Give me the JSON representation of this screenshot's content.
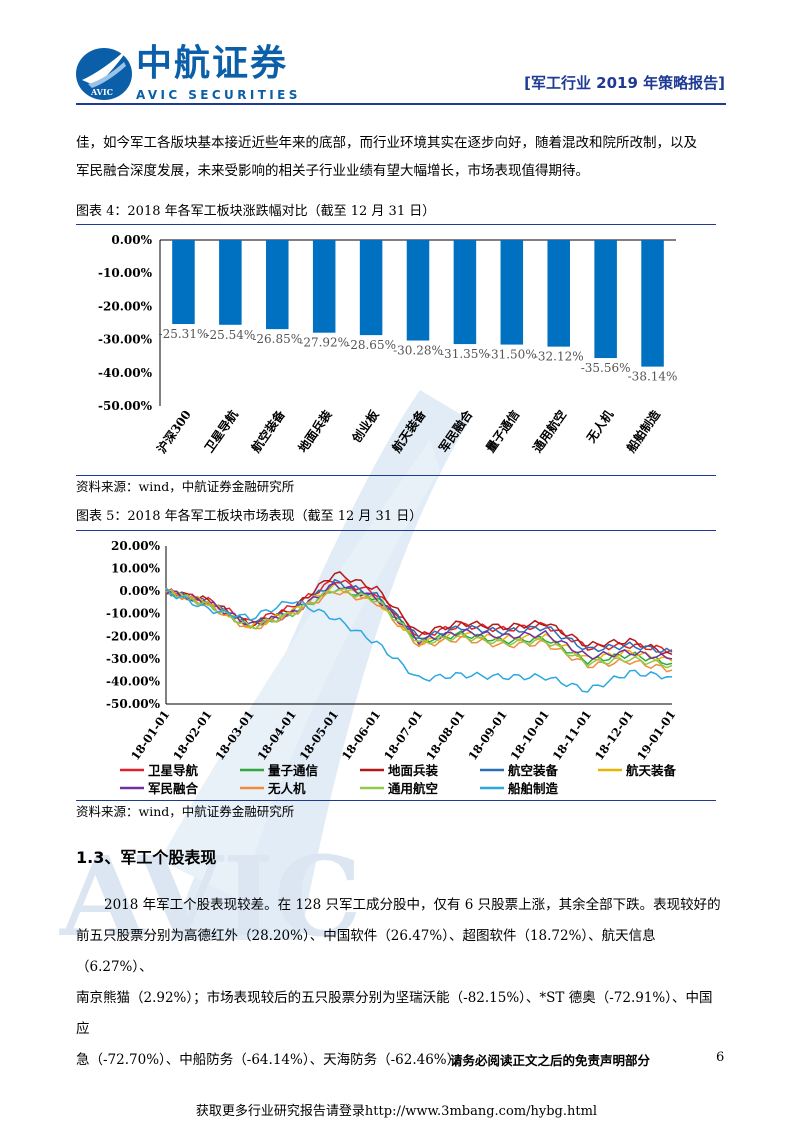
{
  "header": {
    "brand_cn": "中航证券",
    "brand_en": "AVIC SECURITIES",
    "logo_text": "AVIC",
    "report_title": "[军工行业 2019 年策略报告]"
  },
  "intro_lines": [
    "佳，如今军工各版块基本接近近些年来的底部，而行业环境其实在逐步向好，随着混改和院所改制，以及",
    "军民融合深度发展，未来受影响的相关子行业业绩有望大幅增长，市场表现值得期待。"
  ],
  "figure4": {
    "title": "图表 4：2018 年各军工板块涨跌幅对比（截至 12 月 31 日）",
    "source": "资料来源：wind，中航证券金融研究所"
  },
  "figure5": {
    "title": "图表 5：2018 年各军工板块市场表现（截至 12 月 31 日）",
    "source": "资料来源：wind，中航证券金融研究所"
  },
  "chart_data": [
    {
      "type": "bar",
      "categories": [
        "沪深300",
        "卫星导航",
        "航空装备",
        "地面兵装",
        "创业板",
        "航天装备",
        "军民融合",
        "量子通信",
        "通用航空",
        "无人机",
        "船舶制造"
      ],
      "values": [
        -25.31,
        -25.54,
        -26.85,
        -27.92,
        -28.65,
        -30.28,
        -31.35,
        -31.5,
        -32.12,
        -35.56,
        -38.14
      ],
      "value_labels": [
        "-25.31%",
        "-25.54%",
        "-26.85%",
        "-27.92%",
        "-28.65%",
        "-30.28%",
        "-31.35%",
        "-31.50%",
        "-32.12%",
        "-35.56%",
        "-38.14%"
      ],
      "yticks": [
        "0.00%",
        "-10.00%",
        "-20.00%",
        "-30.00%",
        "-40.00%",
        "-50.00%"
      ],
      "ylim": [
        -50,
        0
      ],
      "bar_color": "#0070c0"
    },
    {
      "type": "line",
      "x_ticks": [
        "18-01-01",
        "18-02-01",
        "18-03-01",
        "18-04-01",
        "18-05-01",
        "18-06-01",
        "18-07-01",
        "18-08-01",
        "18-09-01",
        "18-10-01",
        "18-11-01",
        "18-12-01",
        "19-01-01"
      ],
      "yticks": [
        "20.00%",
        "10.00%",
        "0.00%",
        "-10.00%",
        "-20.00%",
        "-30.00%",
        "-40.00%",
        "-50.00%"
      ],
      "ylim": [
        -50,
        20
      ],
      "series": [
        {
          "name": "卫星导航",
          "color": "#e0202a",
          "values": [
            0,
            -4,
            -14,
            -7,
            5,
            -1,
            -20,
            -15,
            -17,
            -15,
            -25,
            -24,
            -26
          ]
        },
        {
          "name": "量子通信",
          "color": "#2eaa3c",
          "values": [
            0,
            -6,
            -16,
            -10,
            1,
            -3,
            -22,
            -19,
            -22,
            -21,
            -31,
            -28,
            -32
          ]
        },
        {
          "name": "地面兵装",
          "color": "#b41818",
          "values": [
            0,
            -4,
            -15,
            -8,
            8,
            1,
            -19,
            -14,
            -16,
            -14,
            -24,
            -22,
            -28
          ]
        },
        {
          "name": "航空装备",
          "color": "#2a6fb5",
          "values": [
            0,
            -5,
            -15,
            -9,
            4,
            -2,
            -21,
            -16,
            -18,
            -16,
            -26,
            -24,
            -27
          ]
        },
        {
          "name": "航天装备",
          "color": "#e8b400",
          "values": [
            0,
            -5,
            -16,
            -9,
            2,
            -4,
            -23,
            -19,
            -21,
            -20,
            -30,
            -27,
            -31
          ]
        },
        {
          "name": "军民融合",
          "color": "#7030a0",
          "values": [
            0,
            -5,
            -15,
            -10,
            3,
            -3,
            -22,
            -18,
            -20,
            -19,
            -29,
            -27,
            -30
          ]
        },
        {
          "name": "无人机",
          "color": "#f08c3c",
          "values": [
            0,
            -6,
            -17,
            -10,
            0,
            -5,
            -24,
            -21,
            -24,
            -23,
            -33,
            -31,
            -35
          ]
        },
        {
          "name": "通用航空",
          "color": "#92c84a",
          "values": [
            0,
            -6,
            -16,
            -10,
            1,
            -4,
            -23,
            -20,
            -23,
            -22,
            -32,
            -30,
            -33
          ]
        },
        {
          "name": "船舶制造",
          "color": "#2aa8e0",
          "values": [
            0,
            -8,
            -12,
            -4,
            -12,
            -23,
            -39,
            -37,
            -38,
            -38,
            -44,
            -36,
            -38
          ]
        }
      ]
    }
  ],
  "section": {
    "title": "1.3、军工个股表现"
  },
  "body_lines": [
    "2018 年军工个股表现较差。在 128 只军工成分股中，仅有 6 只股票上涨，其余全部下跌。表现较好的",
    "前五只股票分别为高德红外（28.20%）、中国软件（26.47%）、超图软件（18.72%）、航天信息（6.27%）、",
    "南京熊猫（2.92%）；市场表现较后的五只股票分别为坚瑞沃能（-82.15%）、*ST 德奥（-72.91%）、中国应",
    "急（-72.70%）、中船防务（-64.14%）、天海防务（-62.46%）。"
  ],
  "footer": {
    "disclaimer": "请务必阅读正文之后的免责声明部分",
    "page": "6",
    "link_text": "获取更多行业研究报告请登录http://www.3mbang.com/hybg.html"
  },
  "colors": {
    "brand_blue": "#0b5fa8",
    "rule_navy": "#1f3a93",
    "watermark": "#dce8f4"
  }
}
